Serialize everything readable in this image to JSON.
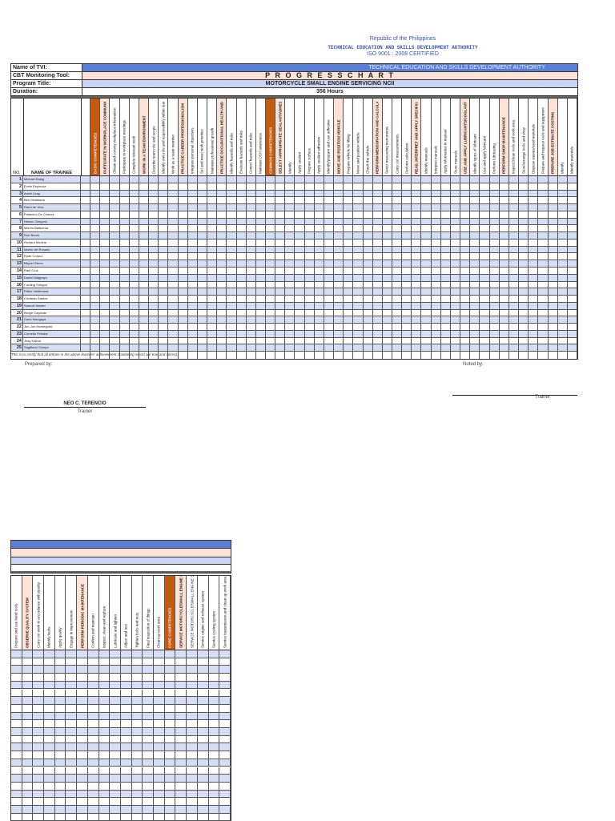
{
  "header": {
    "republic": "Republic of the Philippines",
    "agency": "TECHNICAL EDUCATION AND SKILLS DEVELOPMENT AUTHORITY",
    "iso": "ISO 9001 : 2008 CERTIFIED"
  },
  "info": [
    {
      "label": "Name of TVI:",
      "value": "TECHNICAL EDUCATION AND SKILLS DEVELOPMENT AUTHORITY"
    },
    {
      "label": "CBT Monitoring Tool:",
      "value": "P R O G R E S S   C H A R T"
    },
    {
      "label": "Program Title:",
      "value": "MOTORCYCLE SMALL ENGINE SERVICING NCII"
    },
    {
      "label": "Duration:",
      "value": "356 Hours"
    }
  ],
  "colors": {
    "blue": "#5b7fd6",
    "peach": "#fde3d6",
    "light_blue": "#c9d5f3",
    "orange": "#c55a11"
  },
  "table": {
    "no_header": "NO.",
    "name_header": "NAME OF TRAINEE",
    "columns": [
      {
        "t": "w",
        "l": ""
      },
      {
        "t": "s",
        "l": "BASIC COMPETENCIES"
      },
      {
        "t": "u",
        "l": "PARTICIPATE IN WORKPLACE COMMUNICATION"
      },
      {
        "t": "w",
        "l": "Obtain and convey workplace information"
      },
      {
        "t": "w",
        "l": "Participate in workplace meetings"
      },
      {
        "t": "w",
        "l": "Complete relevant work"
      },
      {
        "t": "u",
        "l": "WORK IN A TEAM ENVIRONMENT"
      },
      {
        "t": "w",
        "l": "Describe team role and scope"
      },
      {
        "t": "w",
        "l": "Identify own role and responsibility within team"
      },
      {
        "t": "w",
        "l": "Work as a team member"
      },
      {
        "t": "u",
        "l": "PRACTICE CAREER PROFESSIONALISM"
      },
      {
        "t": "w",
        "l": "Integrate personal objectives"
      },
      {
        "t": "w",
        "l": "Set and meet work priorities"
      },
      {
        "t": "w",
        "l": "Maintain professional growth"
      },
      {
        "t": "u",
        "l": "PRACTICE OCCUPATIONAL HEALTH AND SAFETY"
      },
      {
        "t": "w",
        "l": "Identify hazards and risks"
      },
      {
        "t": "w",
        "l": "Evaluate hazards and risks"
      },
      {
        "t": "w",
        "l": "Control hazards and risks"
      },
      {
        "t": "w",
        "l": "Maintain OSH awareness"
      },
      {
        "t": "s",
        "l": "COMMON COMPETENCIES"
      },
      {
        "t": "u",
        "l": "SELECT APPROPRIATE SEALANT/ADHESIVE"
      },
      {
        "t": "w",
        "l": "Identify"
      },
      {
        "t": "w",
        "l": "Apply sealant"
      },
      {
        "t": "w",
        "l": "Prepare surface"
      },
      {
        "t": "w",
        "l": "Apply sealant adhesive"
      },
      {
        "t": "w",
        "l": "Identify/prepare and use adhesive"
      },
      {
        "t": "u",
        "l": "MOVE AND POSITION VEHICLE"
      },
      {
        "t": "w",
        "l": "Prepare vehicle for lifting"
      },
      {
        "t": "w",
        "l": "Move and position vehicle"
      },
      {
        "t": "w",
        "l": "Check the vehicle"
      },
      {
        "t": "u",
        "l": "PERFORM MENSURATION AND CALCULATION"
      },
      {
        "t": "w",
        "l": "Select measuring instruments"
      },
      {
        "t": "w",
        "l": "Carry out measurements"
      },
      {
        "t": "w",
        "l": "Perform calculation"
      },
      {
        "t": "u",
        "l": "READ, INTERPRET AND APPLY SPECIFICATION AND MANUALS"
      },
      {
        "t": "w",
        "l": "Identify manuals"
      },
      {
        "t": "w",
        "l": "Interpret manuals"
      },
      {
        "t": "w",
        "l": "Apply information in manual"
      },
      {
        "t": "w",
        "l": "Store manuals"
      },
      {
        "t": "u",
        "l": "USE AND APPLY LUBRICANTS/COOLANT"
      },
      {
        "t": "w",
        "l": "Identify types of lubricant"
      },
      {
        "t": "w",
        "l": "Use and apply lubricant"
      },
      {
        "t": "w",
        "l": "Perform lubricating"
      },
      {
        "t": "u",
        "l": "PERFORM SHOP MAINTENANCE"
      },
      {
        "t": "w",
        "l": "Inspect/clean tools and work area"
      },
      {
        "t": "w",
        "l": "Store/arrange tools and shop"
      },
      {
        "t": "w",
        "l": "Dispose wastes/used materials"
      },
      {
        "t": "w",
        "l": "Prepare and request tools and equipment"
      },
      {
        "t": "u",
        "l": "PREPARE JOB ESTIMATE COSTING"
      },
      {
        "t": "w",
        "l": "Identify"
      },
      {
        "t": "w",
        "l": "Identify materials"
      }
    ],
    "trainees": [
      "Michael Balag",
      "Erwin Espinosa",
      "Arwin Lirag",
      "Ben Malabana",
      "Rand de Vera",
      "Palamino De Chavez",
      "Nelson Gregorio",
      "Marvin Balbuena",
      "Roe Borak",
      "Richard Medina",
      "Martin del Rosario",
      "Ryan Corpuz",
      "Miguel Sierra",
      "Raul Cruz",
      "Daniel Magpayo",
      "Cording Sungod",
      "Pablo Valderama",
      "Christian Santos",
      "Samuel Ismael",
      "Benjie Cayanan",
      "Carlo Mangaya",
      "Jun-Jun Montegudo",
      "Cornelio Pelodar",
      "Jhay Kalma",
      "Sagittario Guiapo"
    ]
  },
  "footer": {
    "certify": "This is to certify that all entries in the above learners' achievement monitoring report are true and correct.",
    "prepared_by": "Prepared by:",
    "noted_by": "Noted by:",
    "trainer_name": "NEO C. TERENCIO",
    "trainer_title": "Trainer",
    "noted_title": "Trainer"
  },
  "page2": {
    "columns": [
      {
        "t": "w",
        "l": "Prepare and use hand tools"
      },
      {
        "t": "u",
        "l": "OBSERVE QUALITY SYSTEM"
      },
      {
        "t": "w",
        "l": "Carry out work in accordance with quality"
      },
      {
        "t": "w",
        "l": "Identify faults"
      },
      {
        "t": "w",
        "l": "Apply quality"
      },
      {
        "t": "w",
        "l": "Engage in improvement"
      },
      {
        "t": "u",
        "l": "PERFORM PERIODIC MAINTENANCE"
      },
      {
        "t": "w",
        "l": "Confirm and maintain"
      },
      {
        "t": "w",
        "l": "Inspect, clean and replace"
      },
      {
        "t": "w",
        "l": "Lubricate and tighten"
      },
      {
        "t": "w",
        "l": "Adjust and test"
      },
      {
        "t": "w",
        "l": "Tighten bolts and nuts"
      },
      {
        "t": "w",
        "l": "Final inspection of things"
      },
      {
        "t": "w",
        "l": "Clean up work area"
      },
      {
        "t": "s",
        "l": "CORE COMPETENCIES"
      },
      {
        "t": "u",
        "l": "SERVICE MOTORCYCLE/SMALL ENGINE SYSTEM"
      },
      {
        "t": "w",
        "l": "SERVICE MOTORCYCLE/SMALL ENGINE SYSTEM"
      },
      {
        "t": "w",
        "l": "Service engine and exhaust system"
      },
      {
        "t": "w",
        "l": "Service cooling system"
      },
      {
        "t": "w",
        "l": "Service transmission and clean up work area"
      }
    ]
  }
}
